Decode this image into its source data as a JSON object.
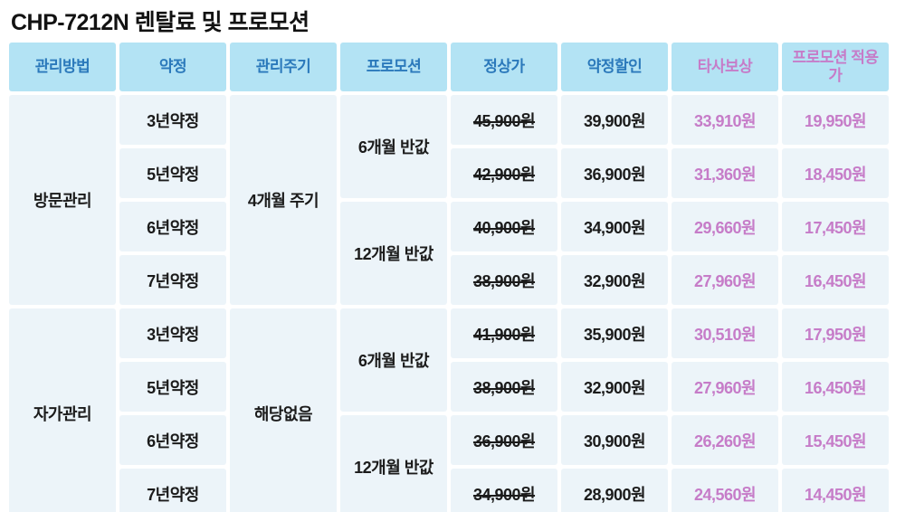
{
  "title": "CHP-7212N 렌탈료 및 프로모션",
  "colors": {
    "header_bg": "#b3e3f4",
    "header_text_blue": "#2b79bb",
    "accent_pink": "#c67cc8",
    "cell_bg": "#ecf4f9",
    "cell_text": "#1b1b1b",
    "gap": "#ffffff"
  },
  "table": {
    "headers": {
      "management": "관리방법",
      "contract": "약정",
      "cycle": "관리주기",
      "promotion": "프로모션",
      "normal_price": "정상가",
      "contract_discount": "약정할인",
      "trade_in": "타사보상",
      "promo_price": "프로모션 적용가"
    },
    "rows": [
      {
        "management": "방문관리",
        "contract": "3년약정",
        "cycle": "4개월 주기",
        "promotion": "6개월 반값",
        "normal_price": "45,900원",
        "contract_discount": "39,900원",
        "trade_in": "33,910원",
        "promo_price": "19,950원"
      },
      {
        "contract": "5년약정",
        "normal_price": "42,900원",
        "contract_discount": "36,900원",
        "trade_in": "31,360원",
        "promo_price": "18,450원"
      },
      {
        "contract": "6년약정",
        "promotion": "12개월 반값",
        "normal_price": "40,900원",
        "contract_discount": "34,900원",
        "trade_in": "29,660원",
        "promo_price": "17,450원"
      },
      {
        "contract": "7년약정",
        "normal_price": "38,900원",
        "contract_discount": "32,900원",
        "trade_in": "27,960원",
        "promo_price": "16,450원"
      },
      {
        "management": "자가관리",
        "contract": "3년약정",
        "cycle": "해당없음",
        "promotion": "6개월 반값",
        "normal_price": "41,900원",
        "contract_discount": "35,900원",
        "trade_in": "30,510원",
        "promo_price": "17,950원"
      },
      {
        "contract": "5년약정",
        "normal_price": "38,900원",
        "contract_discount": "32,900원",
        "trade_in": "27,960원",
        "promo_price": "16,450원"
      },
      {
        "contract": "6년약정",
        "promotion": "12개월 반값",
        "normal_price": "36,900원",
        "contract_discount": "30,900원",
        "trade_in": "26,260원",
        "promo_price": "15,450원"
      },
      {
        "contract": "7년약정",
        "normal_price": "34,900원",
        "contract_discount": "28,900원",
        "trade_in": "24,560원",
        "promo_price": "14,450원"
      }
    ]
  }
}
